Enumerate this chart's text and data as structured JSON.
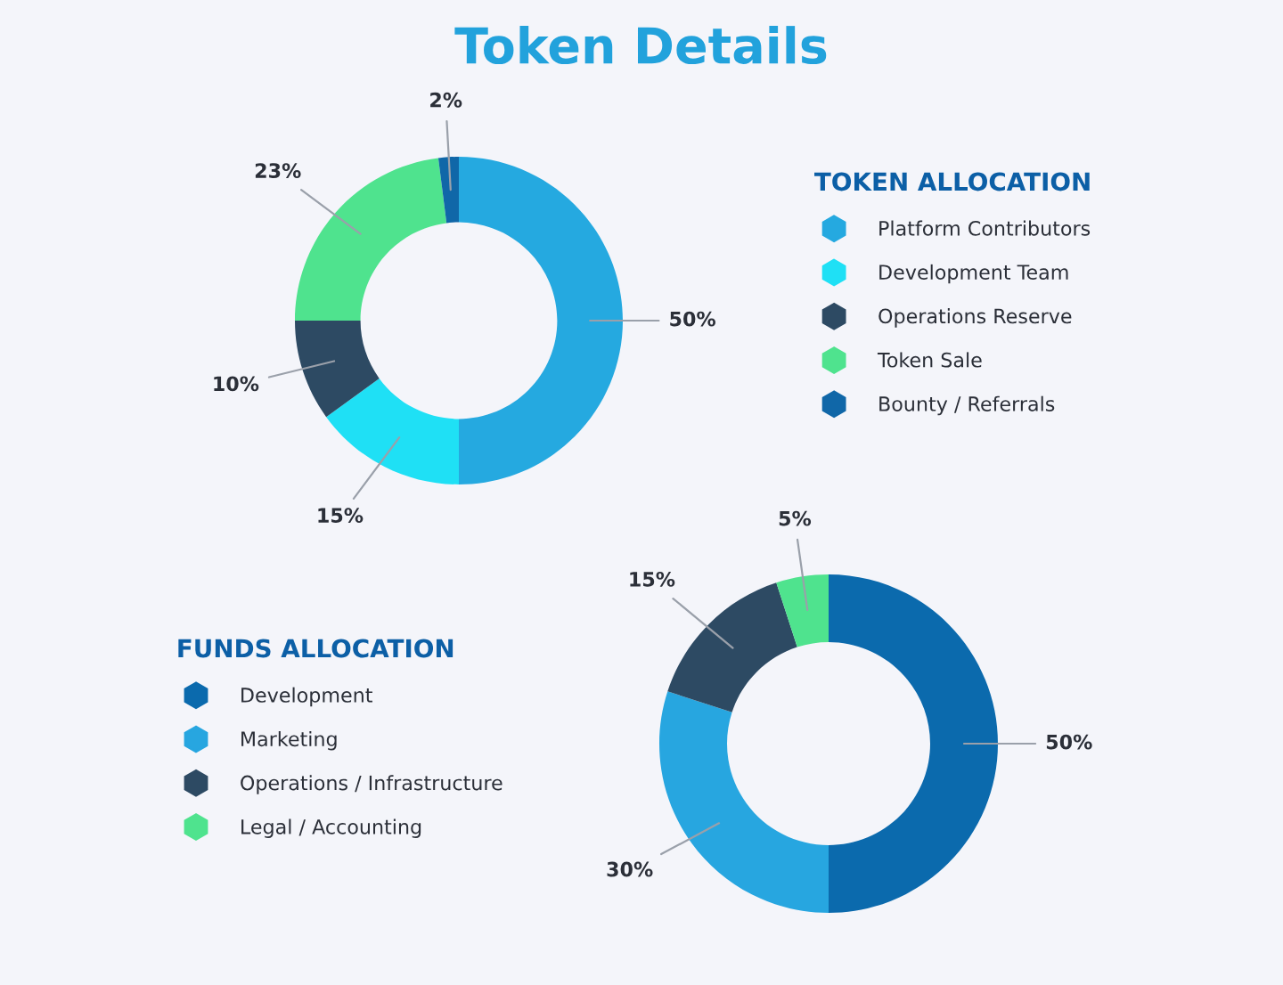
{
  "chart_data": [
    {
      "type": "donut",
      "title": "Token Details",
      "legend_title": "TOKEN ALLOCATION",
      "categories": [
        "Platform Contributors",
        "Development Team",
        "Operations Reserve",
        "Token Sale",
        "Bounty / Referrals"
      ],
      "values": [
        50,
        15,
        10,
        23,
        2
      ],
      "colors": [
        "#25a9e0",
        "#1fe0f5",
        "#2d4a63",
        "#4fe38e",
        "#1067a8"
      ],
      "value_labels": [
        "50%",
        "15%",
        "10%",
        "23%",
        "2%"
      ],
      "legend": "right"
    },
    {
      "type": "donut",
      "legend_title": "FUNDS ALLOCATION",
      "categories": [
        "Development",
        "Marketing",
        "Operations / Infrastructure",
        "Legal / Accounting"
      ],
      "values": [
        50,
        30,
        15,
        5
      ],
      "colors": [
        "#0b6aad",
        "#27a6e0",
        "#2d4a63",
        "#4fe38e"
      ],
      "value_labels": [
        "50%",
        "30%",
        "15%",
        "5%"
      ],
      "legend": "left"
    }
  ]
}
